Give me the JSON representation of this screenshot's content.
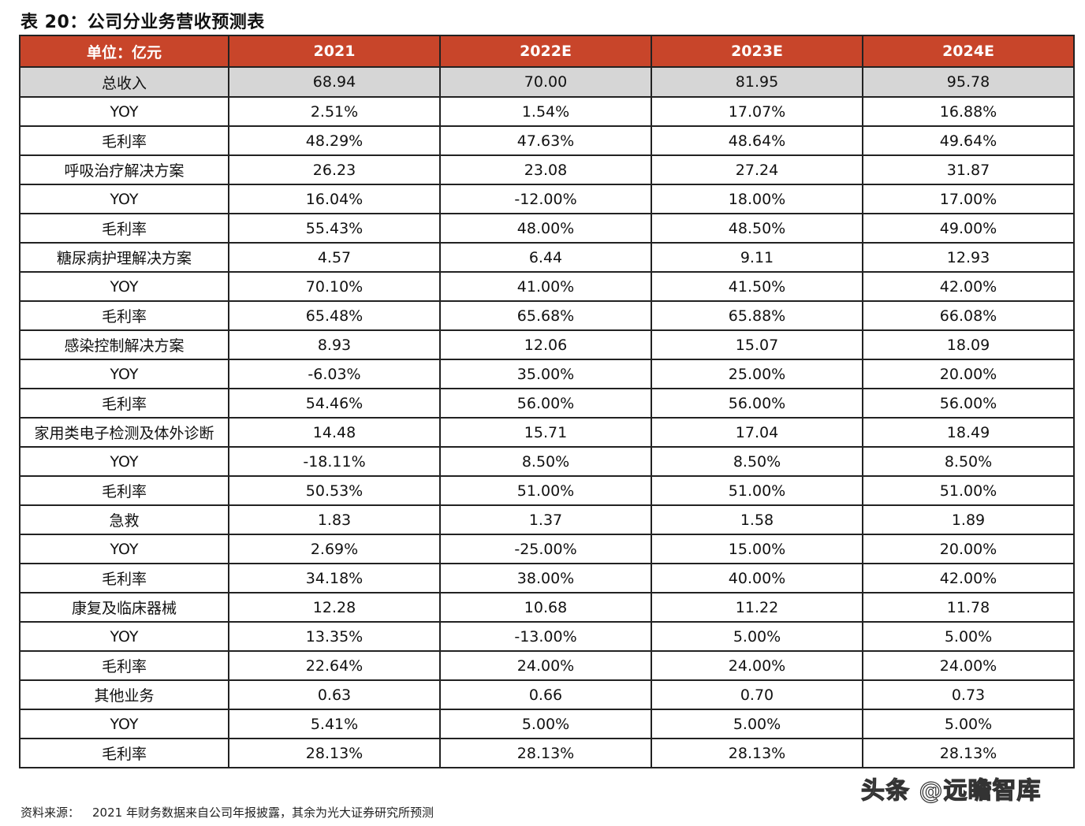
{
  "title": "表 20：公司分业务营收预测表",
  "header": [
    "单位：亿元",
    "2021",
    "2022E",
    "2023E",
    "2024E"
  ],
  "rows": [
    {
      "label": "总收入",
      "values": [
        "68.94",
        "70.00",
        "81.95",
        "95.78"
      ],
      "kind": "total"
    },
    {
      "label": "YOY",
      "values": [
        "2.51%",
        "1.54%",
        "17.07%",
        "16.88%"
      ],
      "kind": "normal"
    },
    {
      "label": "毛利率",
      "values": [
        "48.29%",
        "47.63%",
        "48.64%",
        "49.64%"
      ],
      "kind": "normal"
    },
    {
      "label": "呼吸治疗解决方案",
      "values": [
        "26.23",
        "23.08",
        "27.24",
        "31.87"
      ],
      "kind": "normal"
    },
    {
      "label": "YOY",
      "values": [
        "16.04%",
        "-12.00%",
        "18.00%",
        "17.00%"
      ],
      "kind": "normal"
    },
    {
      "label": "毛利率",
      "values": [
        "55.43%",
        "48.00%",
        "48.50%",
        "49.00%"
      ],
      "kind": "normal"
    },
    {
      "label": "糖尿病护理解决方案",
      "values": [
        "4.57",
        "6.44",
        "9.11",
        "12.93"
      ],
      "kind": "normal"
    },
    {
      "label": "YOY",
      "values": [
        "70.10%",
        "41.00%",
        "41.50%",
        "42.00%"
      ],
      "kind": "normal"
    },
    {
      "label": "毛利率",
      "values": [
        "65.48%",
        "65.68%",
        "65.88%",
        "66.08%"
      ],
      "kind": "normal"
    },
    {
      "label": "感染控制解决方案",
      "values": [
        "8.93",
        "12.06",
        "15.07",
        "18.09"
      ],
      "kind": "normal"
    },
    {
      "label": "YOY",
      "values": [
        "-6.03%",
        "35.00%",
        "25.00%",
        "20.00%"
      ],
      "kind": "normal"
    },
    {
      "label": "毛利率",
      "values": [
        "54.46%",
        "56.00%",
        "56.00%",
        "56.00%"
      ],
      "kind": "normal"
    },
    {
      "label": "家用类电子检测及体外诊断",
      "values": [
        "14.48",
        "15.71",
        "17.04",
        "18.49"
      ],
      "kind": "normal"
    },
    {
      "label": "YOY",
      "values": [
        "-18.11%",
        "8.50%",
        "8.50%",
        "8.50%"
      ],
      "kind": "normal"
    },
    {
      "label": "毛利率",
      "values": [
        "50.53%",
        "51.00%",
        "51.00%",
        "51.00%"
      ],
      "kind": "normal"
    },
    {
      "label": "急救",
      "values": [
        "1.83",
        "1.37",
        "1.58",
        "1.89"
      ],
      "kind": "normal"
    },
    {
      "label": "YOY",
      "values": [
        "2.69%",
        "-25.00%",
        "15.00%",
        "20.00%"
      ],
      "kind": "normal"
    },
    {
      "label": "毛利率",
      "values": [
        "34.18%",
        "38.00%",
        "40.00%",
        "42.00%"
      ],
      "kind": "normal"
    },
    {
      "label": "康复及临床器械",
      "values": [
        "12.28",
        "10.68",
        "11.22",
        "11.78"
      ],
      "kind": "normal"
    },
    {
      "label": "YOY",
      "values": [
        "13.35%",
        "-13.00%",
        "5.00%",
        "5.00%"
      ],
      "kind": "normal"
    },
    {
      "label": "毛利率",
      "values": [
        "22.64%",
        "24.00%",
        "24.00%",
        "24.00%"
      ],
      "kind": "normal"
    },
    {
      "label": "其他业务",
      "values": [
        "0.63",
        "0.66",
        "0.70",
        "0.73"
      ],
      "kind": "normal"
    },
    {
      "label": "YOY",
      "values": [
        "5.41%",
        "5.00%",
        "5.00%",
        "5.00%"
      ],
      "kind": "normal"
    },
    {
      "label": "毛利率",
      "values": [
        "28.13%",
        "28.13%",
        "28.13%",
        "28.13%"
      ],
      "kind": "normal"
    }
  ],
  "source": {
    "label": "资料来源：",
    "text": "2021 年财务数据来自公司年报披露，其余为光大证券研究所预测"
  },
  "watermark": "头条 @远瞻智库",
  "colors": {
    "header_bg": "#c8452a",
    "total_bg": "#d6d6d6"
  }
}
